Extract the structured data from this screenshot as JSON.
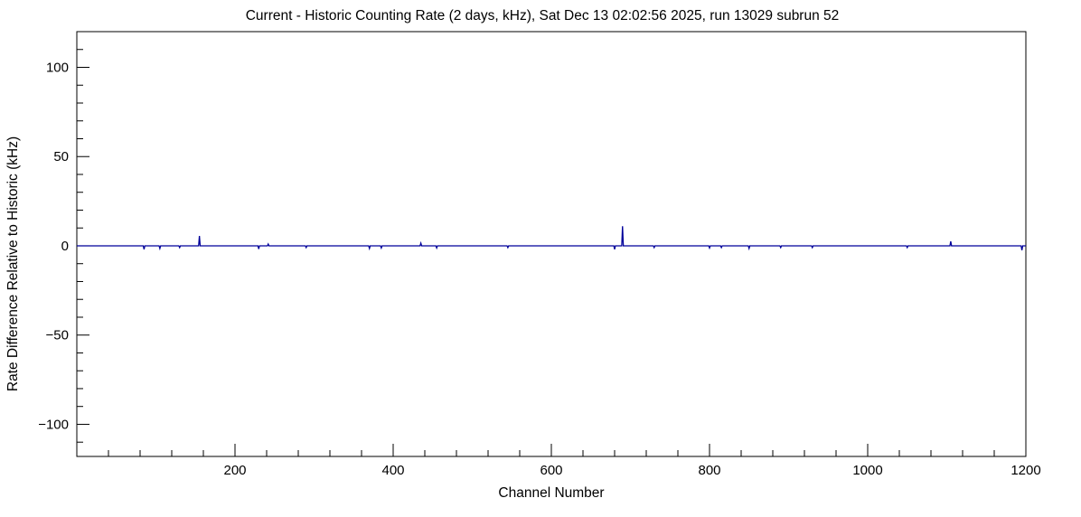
{
  "header": {
    "title": "Current - Historic Counting Rate (2 days, kHz), Sat Dec 13 02:02:56 2025, run 13029 subrun 52"
  },
  "chart_data": {
    "type": "line",
    "title": "Current - Historic Counting Rate (2 days, kHz), Sat Dec 13 02:02:56 2025, run 13029 subrun 52",
    "xlabel": "Channel Number",
    "ylabel": "Rate Difference Relative to Historic (kHz)",
    "xlim": [
      0,
      1200
    ],
    "ylim": [
      -118,
      120
    ],
    "grid": false,
    "legend": false,
    "line_color": "#00009a",
    "frame_color": "#000000",
    "baseline": 0,
    "x_ticks": [
      {
        "value": 200,
        "label": "200"
      },
      {
        "value": 400,
        "label": "400"
      },
      {
        "value": 600,
        "label": "600"
      },
      {
        "value": 800,
        "label": "800"
      },
      {
        "value": 1000,
        "label": "1000"
      },
      {
        "value": 1200,
        "label": "1200"
      }
    ],
    "x_minor_step": 40,
    "y_ticks": [
      {
        "value": -100,
        "label": "−100"
      },
      {
        "value": -50,
        "label": "−50"
      },
      {
        "value": 0,
        "label": "0"
      },
      {
        "value": 50,
        "label": "50"
      },
      {
        "value": 100,
        "label": "100"
      }
    ],
    "y_minor_step": 10,
    "deviations": [
      {
        "channel": 85,
        "value": -2
      },
      {
        "channel": 105,
        "value": -1.5
      },
      {
        "channel": 130,
        "value": -1
      },
      {
        "channel": 155,
        "value": 5.5
      },
      {
        "channel": 230,
        "value": -1.8
      },
      {
        "channel": 242,
        "value": 1
      },
      {
        "channel": 290,
        "value": -1
      },
      {
        "channel": 370,
        "value": -1.5
      },
      {
        "channel": 385,
        "value": -1.2
      },
      {
        "channel": 435,
        "value": 1.5
      },
      {
        "channel": 455,
        "value": -1.2
      },
      {
        "channel": 545,
        "value": -1
      },
      {
        "channel": 680,
        "value": -2
      },
      {
        "channel": 690,
        "value": 11
      },
      {
        "channel": 730,
        "value": -1
      },
      {
        "channel": 800,
        "value": -1.2
      },
      {
        "channel": 815,
        "value": -1
      },
      {
        "channel": 850,
        "value": -1.5
      },
      {
        "channel": 890,
        "value": -1
      },
      {
        "channel": 930,
        "value": -1
      },
      {
        "channel": 1050,
        "value": -1
      },
      {
        "channel": 1105,
        "value": 2.5
      },
      {
        "channel": 1195,
        "value": -2.5
      }
    ]
  }
}
